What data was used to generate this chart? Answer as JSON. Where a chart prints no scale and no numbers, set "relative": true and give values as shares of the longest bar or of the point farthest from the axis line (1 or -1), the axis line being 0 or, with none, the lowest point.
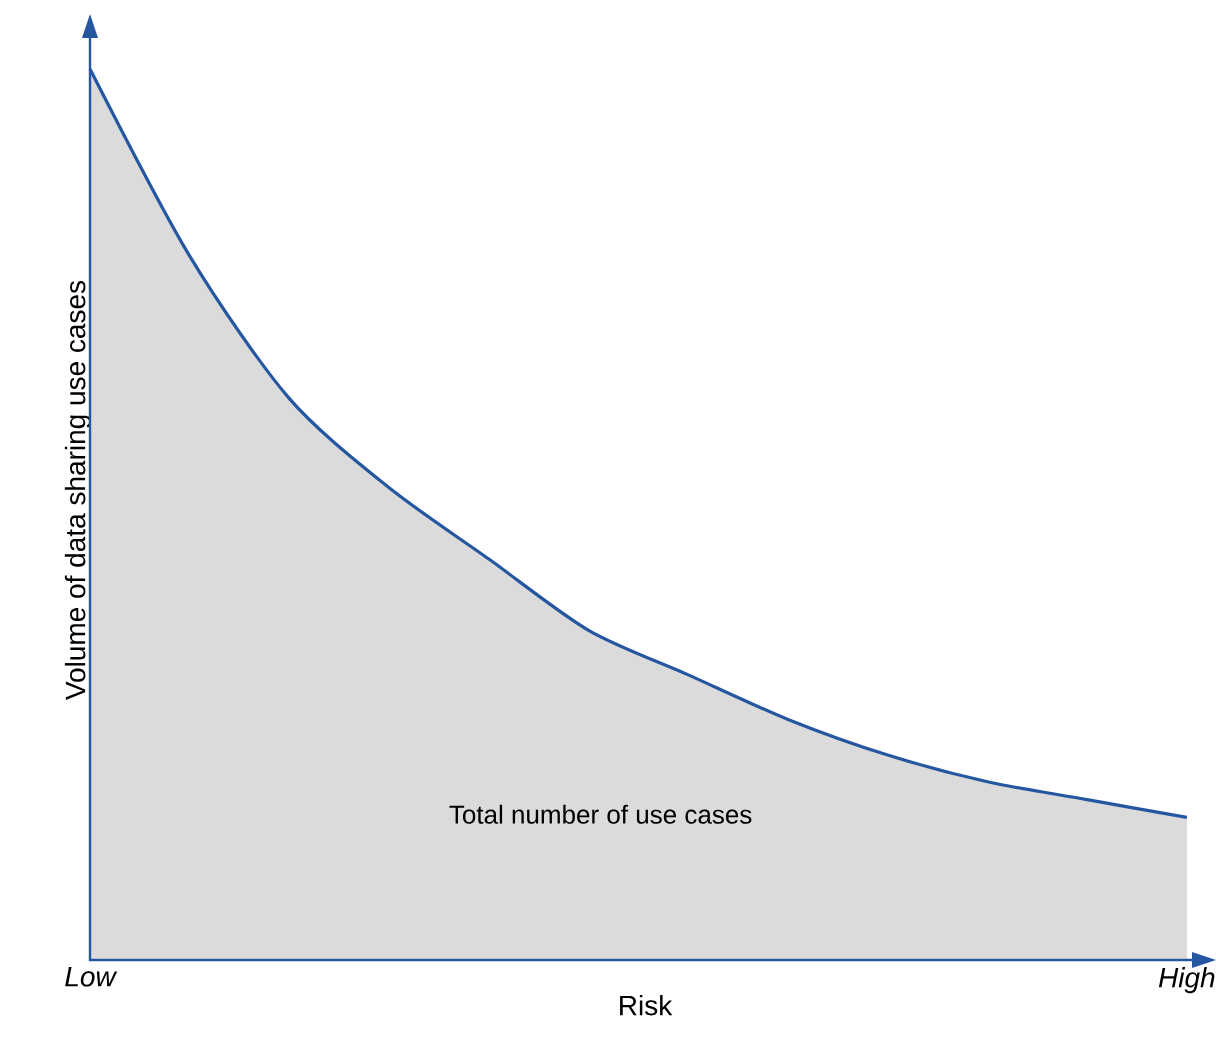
{
  "chart_data": {
    "type": "area",
    "relative": true,
    "xlabel": "Risk",
    "ylabel": "Volume of data sharing use cases",
    "categories": [
      "Low",
      null,
      null,
      null,
      null,
      null,
      null,
      null,
      null,
      null,
      null,
      "High"
    ],
    "series": [
      {
        "color": "#2457a0",
        "values": [
          1.0,
          0.79,
          0.63,
          0.53,
          0.45,
          0.37,
          0.32,
          0.27,
          0.23,
          0.2,
          0.18,
          0.16
        ]
      }
    ],
    "annotations": [
      "Total number of use cases"
    ]
  }
}
